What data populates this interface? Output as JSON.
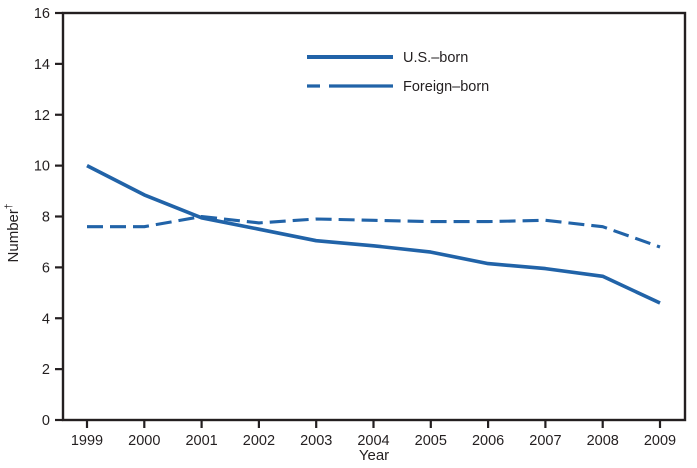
{
  "chart_data": {
    "type": "line",
    "title": "",
    "xlabel": "Year",
    "ylabel": "Number",
    "ylabel_sup": "†",
    "ylim": [
      0,
      16
    ],
    "ytick_step": 2,
    "grid": false,
    "legend_position": "top-center",
    "categories": [
      1999,
      2000,
      2001,
      2002,
      2003,
      2004,
      2005,
      2006,
      2007,
      2008,
      2009
    ],
    "series": [
      {
        "name": "U.S.–born",
        "style": "solid",
        "values": [
          10.0,
          8.85,
          7.95,
          7.5,
          7.05,
          6.85,
          6.6,
          6.15,
          5.95,
          5.65,
          4.6
        ]
      },
      {
        "name": "Foreign–born",
        "style": "dashed",
        "values": [
          7.6,
          7.6,
          8.0,
          7.75,
          7.9,
          7.85,
          7.8,
          7.8,
          7.85,
          7.6,
          6.8
        ]
      }
    ],
    "colors": {
      "line": "#2163a8",
      "axis": "#231f20",
      "background": "#ffffff"
    }
  }
}
